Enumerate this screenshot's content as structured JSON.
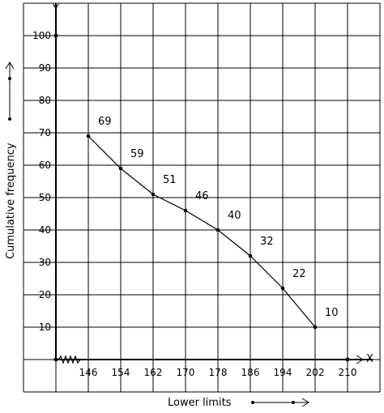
{
  "chart_data": {
    "type": "line",
    "title": "",
    "xlabel": "Lower limits",
    "ylabel": "Cumulative frequency",
    "x_axis_letter": "X",
    "y_axis_letter": "Y",
    "x": [
      146,
      154,
      162,
      170,
      178,
      186,
      194,
      202
    ],
    "y": [
      69,
      59,
      51,
      46,
      40,
      32,
      22,
      10
    ],
    "point_labels": [
      "69",
      "59",
      "51",
      "46",
      "40",
      "32",
      "22",
      "10"
    ],
    "x_ticks": [
      "146",
      "154",
      "162",
      "170",
      "178",
      "186",
      "194",
      "202",
      "210"
    ],
    "y_ticks": [
      "10",
      "20",
      "30",
      "40",
      "50",
      "60",
      "70",
      "80",
      "90",
      "100"
    ],
    "xlim": [
      138,
      218
    ],
    "ylim": [
      0,
      110
    ],
    "axis_break_on_x": true,
    "grid": true,
    "line_color": "#000000",
    "grid_color": "#000000"
  }
}
